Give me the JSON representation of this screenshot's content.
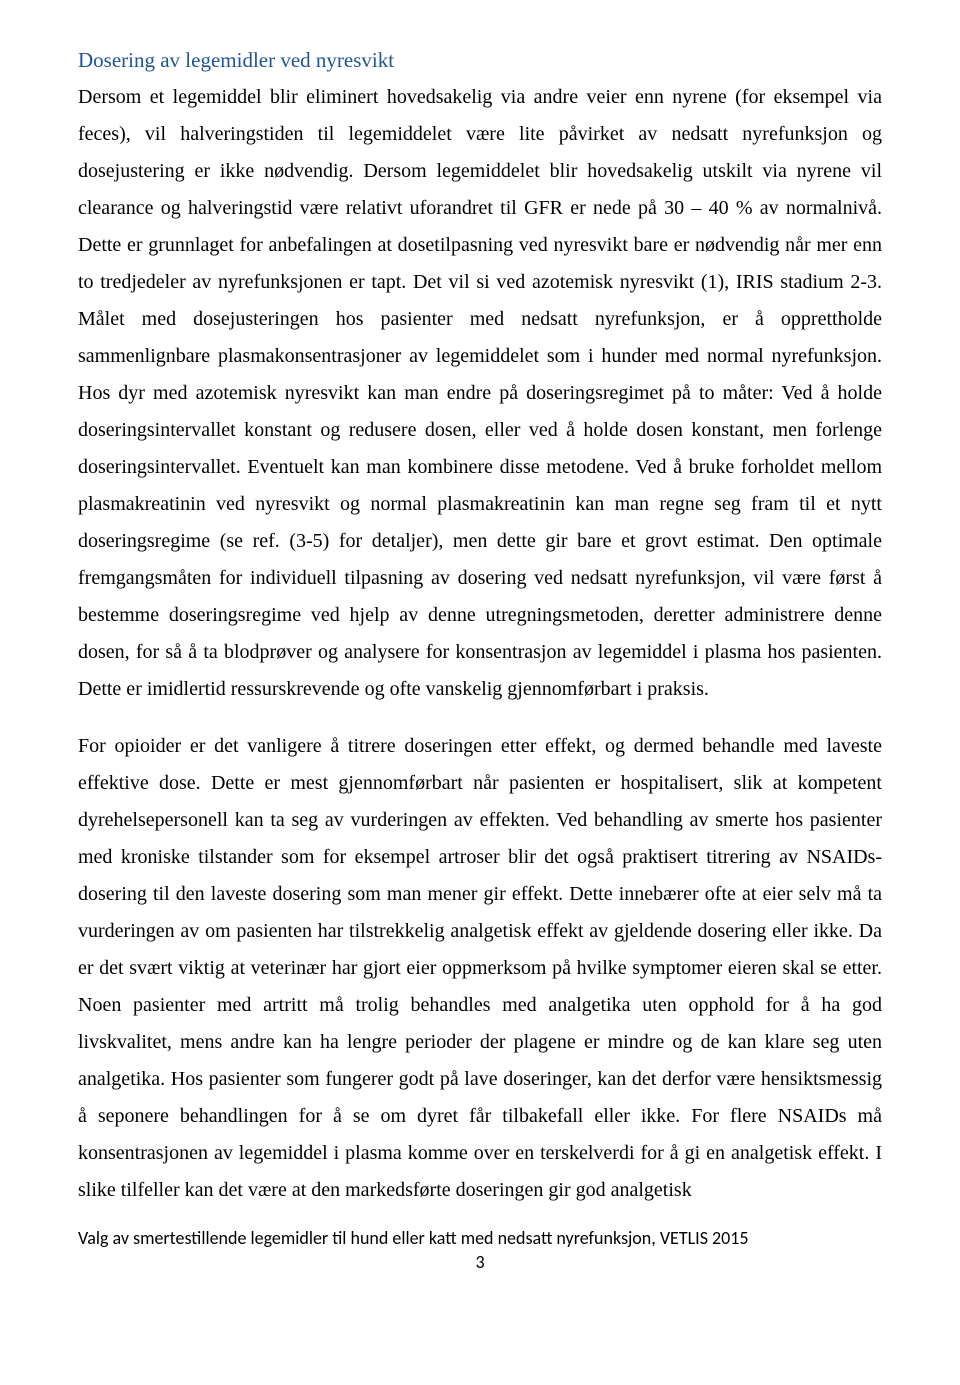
{
  "heading": "Dosering av legemidler ved nyresvikt",
  "paragraph1": "Dersom et legemiddel blir eliminert hovedsakelig via andre veier enn nyrene (for eksempel via feces), vil halveringstiden til legemiddelet være lite påvirket av nedsatt nyrefunksjon og dosejustering er ikke nødvendig. Dersom legemiddelet blir hovedsakelig utskilt via nyrene vil clearance og halveringstid være relativt uforandret til GFR er nede på 30 – 40 % av normalnivå. Dette er grunnlaget for anbefalingen at dosetilpasning ved nyresvikt bare er nødvendig når mer enn to tredjedeler av nyrefunksjonen er tapt. Det vil si ved azotemisk nyresvikt (1), IRIS stadium 2-3. Målet med dosejusteringen hos pasienter med nedsatt nyrefunksjon, er å opprettholde sammenlignbare plasmakonsentrasjoner av legemiddelet som i hunder med normal nyrefunksjon. Hos dyr med azotemisk nyresvikt kan man endre på doseringsregimet på to måter: Ved å holde doseringsintervallet konstant og redusere dosen, eller ved å holde dosen konstant, men forlenge doseringsintervallet. Eventuelt kan man kombinere disse metodene. Ved å bruke forholdet mellom plasmakreatinin ved nyresvikt og normal plasmakreatinin kan man regne seg fram til et nytt doseringsregime (se ref. (3-5) for detaljer), men dette gir bare et grovt estimat. Den optimale fremgangsmåten for individuell tilpasning av dosering ved nedsatt nyrefunksjon, vil være først å bestemme doseringsregime ved hjelp av denne utregningsmetoden, deretter administrere denne dosen, for så å ta blodprøver og analysere for konsentrasjon av legemiddel i plasma hos pasienten. Dette er imidlertid ressurskrevende og ofte vanskelig gjennomførbart i praksis.",
  "paragraph2": "For opioider er det vanligere å titrere doseringen etter effekt, og dermed behandle med laveste effektive dose. Dette er mest gjennomførbart når pasienten er hospitalisert, slik at kompetent dyrehelsepersonell kan ta seg av vurderingen av effekten. Ved behandling av smerte hos pasienter med kroniske tilstander som for eksempel artroser blir det også praktisert titrering av NSAIDs-dosering til den laveste dosering som man mener gir effekt. Dette innebærer ofte at eier selv må ta vurderingen av om pasienten har tilstrekkelig analgetisk effekt av gjeldende dosering eller ikke. Da er det svært viktig at veterinær har gjort eier oppmerksom på hvilke symptomer eieren skal se etter. Noen pasienter med artritt må trolig behandles med analgetika uten opphold for å ha god livskvalitet, mens andre kan ha lengre perioder der plagene er mindre og de kan klare seg uten analgetika. Hos pasienter som fungerer godt på lave doseringer, kan det derfor være hensiktsmessig å seponere behandlingen for å se om dyret får tilbakefall eller ikke. For flere NSAIDs må konsentrasjonen av legemiddel i plasma komme over en terskelverdi for å gi en analgetisk effekt. I slike tilfeller kan det være at den markedsførte doseringen gir god analgetisk",
  "footer": "Valg av smertestillende legemidler til hund eller katt med nedsatt nyrefunksjon, VETLIS 2015",
  "page_number": "3",
  "colors": {
    "heading": "#1f5496",
    "body_text": "#000000",
    "background": "#ffffff"
  },
  "typography": {
    "body_font": "Times New Roman",
    "footer_font": "Calibri",
    "heading_fontsize": 21,
    "body_fontsize": 20,
    "footer_fontsize": 18,
    "line_height": 1.85
  }
}
